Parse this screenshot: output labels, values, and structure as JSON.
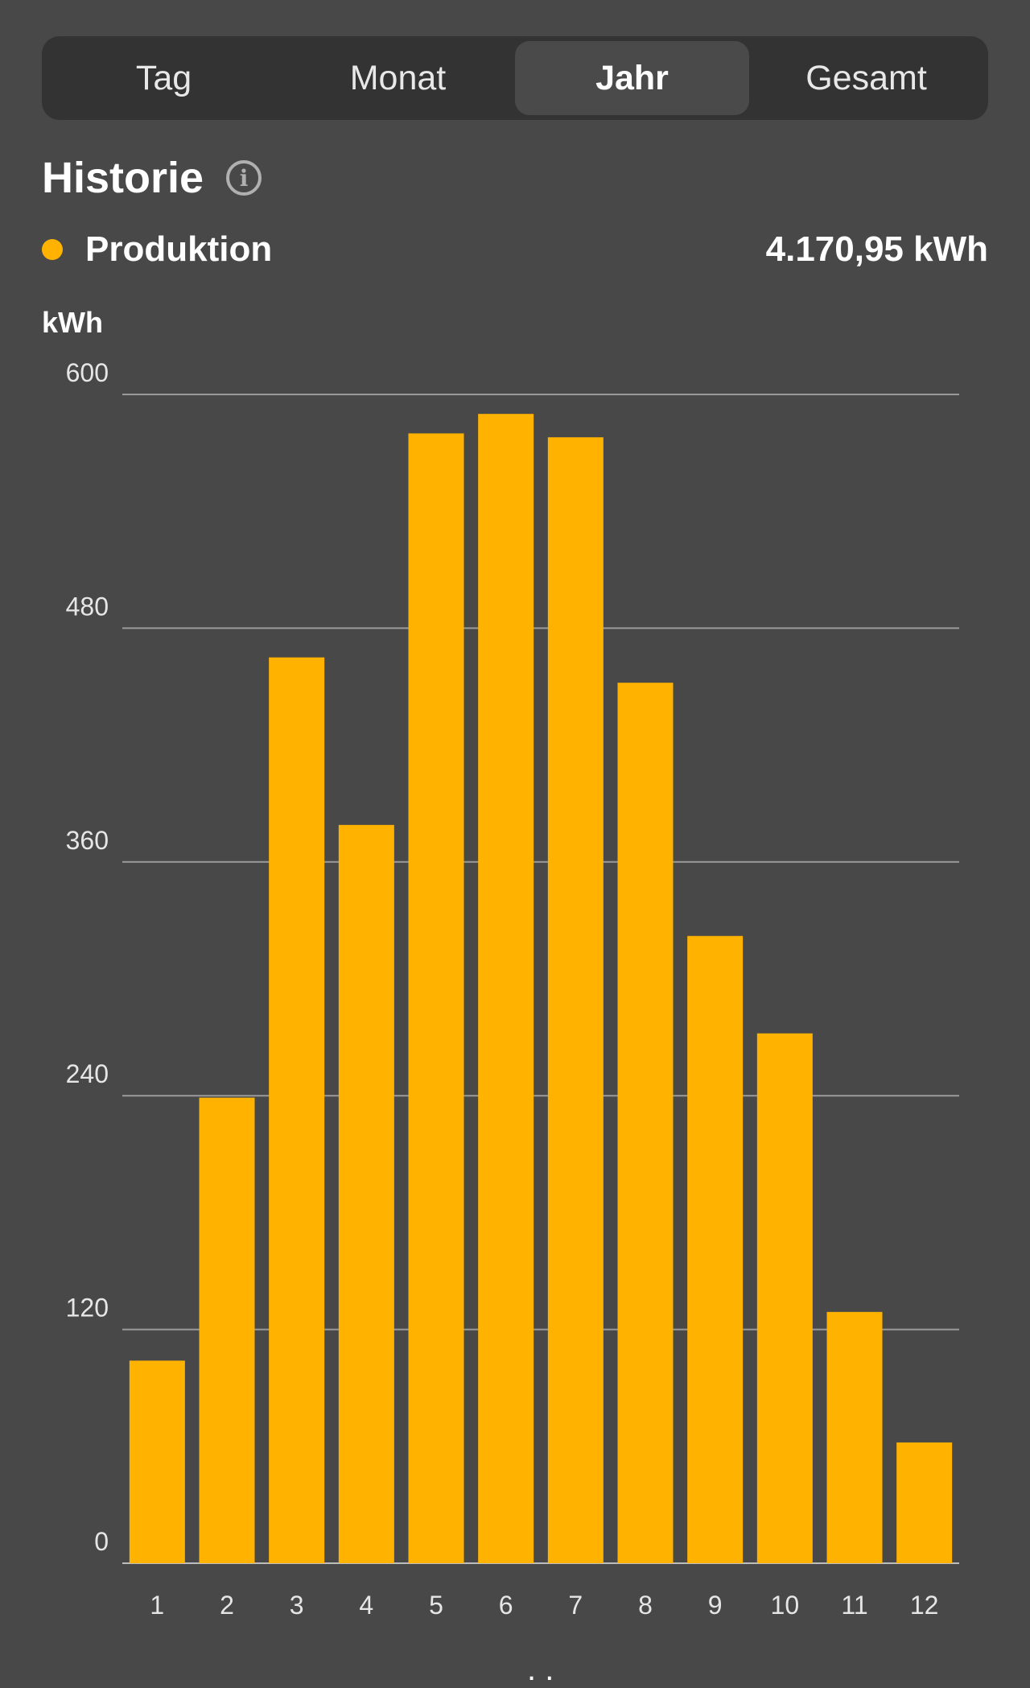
{
  "tabs": [
    {
      "label": "Tag",
      "active": false
    },
    {
      "label": "Monat",
      "active": false
    },
    {
      "label": "Jahr",
      "active": true
    },
    {
      "label": "Gesamt",
      "active": false
    }
  ],
  "header": {
    "title": "Historie",
    "info_icon": "info-icon"
  },
  "legend": {
    "label": "Produktion",
    "total": "4.170,95 kWh",
    "color": "#ffb300"
  },
  "colors": {
    "background": "#484848",
    "bar": "#ffb300",
    "tab_bar": "#333333",
    "grid": "#9a9a9a"
  },
  "chart_data": {
    "type": "bar",
    "ylabel": "kWh",
    "xlabel": "",
    "categories": [
      "1",
      "2",
      "3",
      "4",
      "5",
      "6",
      "7",
      "8",
      "9",
      "10",
      "11",
      "12"
    ],
    "series": [
      {
        "values": [
          104,
          239,
          465,
          379,
          580,
          590,
          578,
          452,
          322,
          272,
          129,
          62
        ]
      }
    ],
    "ylim": [
      0,
      600
    ],
    "yticks": [
      0,
      120,
      240,
      360,
      480,
      600
    ],
    "grid": true
  }
}
